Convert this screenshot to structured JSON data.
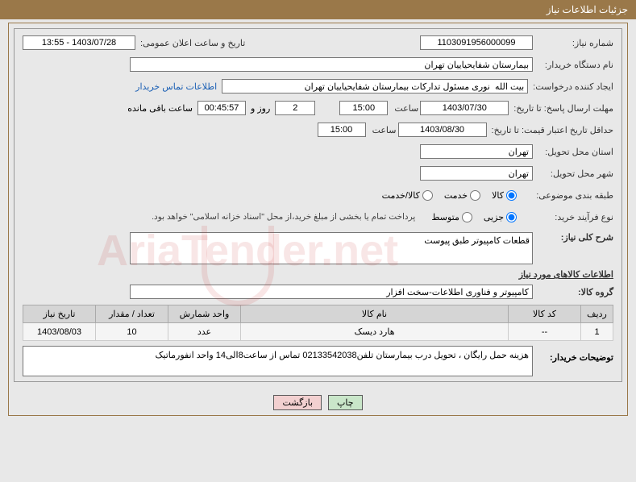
{
  "header": {
    "title": "جزئیات اطلاعات نیاز"
  },
  "fields": {
    "req_number_label": "شماره نیاز:",
    "req_number": "1103091956000099",
    "announce_label": "تاریخ و ساعت اعلان عمومی:",
    "announce_value": "1403/07/28 - 13:55",
    "buyer_org_label": "نام دستگاه خریدار:",
    "buyer_org": "بیمارستان شفایحیاییان تهران",
    "requester_label": "ایجاد کننده درخواست:",
    "requester": "بیت الله  نوری مسئول تدارکات بیمارستان شفایحیاییان تهران",
    "contact_link": "اطلاعات تماس خریدار",
    "deadline_prefix": "مهلت ارسال پاسخ: تا تاریخ:",
    "deadline_date": "1403/07/30",
    "time_label": "ساعت",
    "deadline_time": "15:00",
    "days_label_before": "",
    "days_value": "2",
    "days_and": "روز و",
    "countdown": "00:45:57",
    "remaining_label": "ساعت باقی مانده",
    "validity_label": "حداقل تاریخ اعتبار قیمت: تا تاریخ:",
    "validity_date": "1403/08/30",
    "validity_time": "15:00",
    "province_label": "استان محل تحویل:",
    "province": "تهران",
    "city_label": "شهر محل تحویل:",
    "city": "تهران",
    "category_label": "طبقه بندی موضوعی:",
    "cat_goods": "کالا",
    "cat_service": "خدمت",
    "cat_both": "کالا/خدمت",
    "purchase_type_label": "نوع فرآیند خرید:",
    "pt_small": "جزیی",
    "pt_medium": "متوسط",
    "payment_note": "پرداخت تمام یا بخشی از مبلغ خرید،از محل \"اسناد خزانه اسلامی\" خواهد بود.",
    "summary_label": "شرح کلی نیاز:",
    "summary_value": "قطعات کامپیوتر طبق پیوست",
    "summary_extra": "",
    "items_section": "اطلاعات کالاهای مورد نیاز",
    "group_label": "گروه کالا:",
    "group_value": "کامپیوتر و فناوری اطلاعات-سخت افزار"
  },
  "table": {
    "headers": [
      "ردیف",
      "کد کالا",
      "نام کالا",
      "واحد شمارش",
      "تعداد / مقدار",
      "تاریخ نیاز"
    ],
    "col_widths": [
      "40px",
      "90px",
      "auto",
      "90px",
      "90px",
      "90px"
    ],
    "rows": [
      [
        "1",
        "--",
        "هارد دیسک",
        "عدد",
        "10",
        "1403/08/03"
      ]
    ]
  },
  "buyer_notes": {
    "label": "توضیحات خریدار:",
    "text": "هزینه حمل رایگان ، تحویل درب بیمارستان تلفن02133542038 تماس از ساعت8الی14 واحد انفورماتیک"
  },
  "buttons": {
    "print": "چاپ",
    "back": "بازگشت"
  },
  "colors": {
    "header_bg": "#9a7849",
    "page_bg": "#e8e8e8",
    "link": "#1a5fb4",
    "btn_print_bg": "#c9e6c9",
    "btn_back_bg": "#f2d0d0"
  },
  "watermark": "AriaTender.net"
}
